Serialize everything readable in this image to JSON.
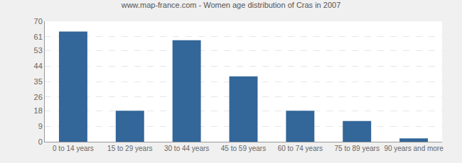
{
  "chart_data": {
    "type": "bar",
    "title": "www.map-france.com - Women age distribution of Cras in 2007",
    "categories": [
      "0 to 14 years",
      "15 to 29 years",
      "30 to 44 years",
      "45 to 59 years",
      "60 to 74 years",
      "75 to 89 years",
      "90 years and more"
    ],
    "values": [
      64,
      18,
      59,
      38,
      18,
      12,
      2
    ],
    "color": "#336699",
    "ylim": [
      0,
      70
    ],
    "yticks": [
      0,
      9,
      18,
      26,
      35,
      44,
      53,
      61,
      70
    ],
    "grid": true
  }
}
